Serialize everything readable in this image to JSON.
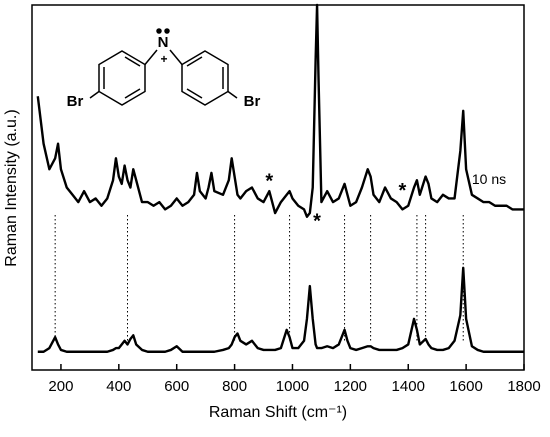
{
  "molecule": {
    "atoms": [
      "Br",
      "N",
      "+",
      "Br"
    ]
  },
  "chart_data": {
    "type": "line",
    "xlabel": "Raman Shift (cm⁻¹)",
    "ylabel": "Raman Intensity (a.u.)",
    "xlim": [
      100,
      1800
    ],
    "ylim": [
      0,
      100
    ],
    "xticks": [
      200,
      400,
      600,
      800,
      1000,
      1200,
      1400,
      1600,
      1800
    ],
    "x": [
      120,
      140,
      160,
      180,
      190,
      200,
      220,
      240,
      260,
      280,
      300,
      320,
      340,
      360,
      380,
      390,
      400,
      410,
      420,
      430,
      440,
      450,
      460,
      480,
      500,
      520,
      540,
      560,
      580,
      600,
      620,
      640,
      660,
      670,
      680,
      700,
      710,
      720,
      730,
      760,
      780,
      790,
      800,
      810,
      820,
      840,
      860,
      880,
      900,
      920,
      940,
      960,
      980,
      990,
      1000,
      1020,
      1040,
      1050,
      1060,
      1070,
      1080,
      1085,
      1090,
      1100,
      1120,
      1140,
      1160,
      1180,
      1190,
      1200,
      1220,
      1240,
      1260,
      1270,
      1280,
      1300,
      1320,
      1340,
      1360,
      1380,
      1400,
      1420,
      1430,
      1440,
      1460,
      1470,
      1480,
      1500,
      1520,
      1540,
      1560,
      1580,
      1590,
      1600,
      1620,
      1640,
      1660,
      1680,
      1700,
      1720,
      1740,
      1760,
      1780,
      1800
    ],
    "series": [
      {
        "color": "#000000",
        "values": [
          75,
          62,
          55,
          58,
          62,
          55,
          50,
          48,
          46,
          49,
          46,
          47,
          45,
          47,
          52,
          58,
          53,
          51,
          56,
          52,
          50,
          55,
          52,
          46,
          46,
          45,
          46,
          44,
          45,
          47,
          45,
          46,
          48,
          54,
          49,
          47,
          50,
          54,
          49,
          48,
          52,
          58,
          53,
          48,
          47,
          49,
          50,
          47,
          46,
          49,
          43,
          46,
          48,
          49,
          47,
          45,
          44,
          42,
          43,
          50,
          85,
          100,
          80,
          46,
          49,
          46,
          47,
          51,
          48,
          45,
          46,
          50,
          55,
          53,
          48,
          46,
          50,
          47,
          46,
          44,
          45,
          50,
          52,
          48,
          53,
          51,
          47,
          46,
          48,
          47,
          47,
          60,
          71,
          55,
          48,
          47,
          46,
          46,
          45,
          45,
          45,
          44,
          44,
          44
        ]
      },
      {
        "color": "#000000",
        "values": [
          5,
          5,
          6,
          9,
          7,
          5.5,
          5,
          5,
          5,
          5,
          5,
          5,
          5,
          5,
          5.5,
          6,
          6,
          7,
          8,
          7,
          8.5,
          9.5,
          7,
          5.5,
          5,
          5,
          5,
          5,
          5.5,
          6.5,
          5,
          5,
          5,
          5,
          5,
          5,
          5,
          5,
          5,
          5.5,
          6,
          7,
          9,
          10,
          8,
          7,
          8,
          6,
          5.5,
          5.5,
          5.5,
          6,
          11,
          9,
          6,
          6,
          8,
          14,
          23,
          14,
          7,
          6,
          6,
          6,
          6.5,
          6,
          7,
          11,
          8,
          6,
          5.5,
          6,
          6.5,
          6.5,
          6,
          5.5,
          5.5,
          5.5,
          5.5,
          6,
          7,
          14,
          11,
          7,
          8.5,
          7,
          6,
          5.5,
          5.5,
          6,
          8,
          15,
          28,
          14,
          6.5,
          5.5,
          5,
          5,
          5,
          5,
          5,
          5,
          5,
          5
        ]
      }
    ],
    "peak_links": [
      180,
      430,
      800,
      990,
      1180,
      1270,
      1430,
      1460,
      1590
    ],
    "annotations": [
      {
        "text": "*",
        "x": 920,
        "y": 52.6
      },
      {
        "text": "*",
        "x": 1085,
        "y": 41.6
      },
      {
        "text": "*",
        "x": 1380,
        "y": 50
      },
      {
        "text": "10 ns",
        "x": 1620,
        "y": 52
      }
    ]
  }
}
